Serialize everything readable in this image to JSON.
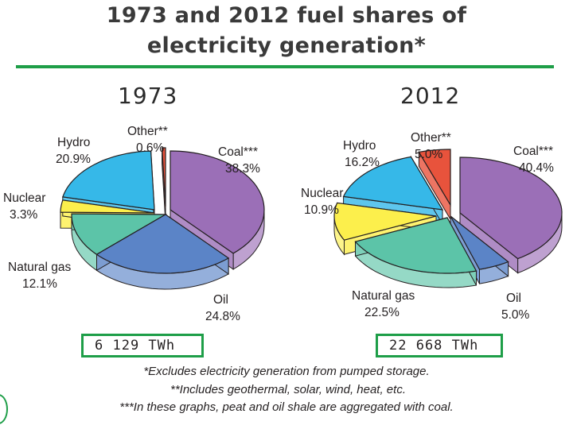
{
  "title": {
    "line1": "1973 and 2012 fuel shares of",
    "line2": "electricity generation*"
  },
  "colors": {
    "accent": "#1e9e48",
    "coal": "#9b6fb7",
    "oil": "#5b84c7",
    "natural_gas": "#5cc4a8",
    "nuclear": "#fcef4c",
    "hydro": "#36b8e8",
    "other": "#e8533c"
  },
  "chart_data": [
    {
      "type": "pie",
      "title": "1973",
      "categories": [
        "Coal***",
        "Oil",
        "Natural gas",
        "Nuclear",
        "Hydro",
        "Other**"
      ],
      "values": [
        38.3,
        24.8,
        12.1,
        3.3,
        20.9,
        0.6
      ],
      "value_labels": [
        "38.3%",
        "24.8%",
        "12.1%",
        "3.3%",
        "20.9%",
        "0.6%"
      ],
      "total": "6 129 TWh"
    },
    {
      "type": "pie",
      "title": "2012",
      "categories": [
        "Coal***",
        "Oil",
        "Natural gas",
        "Nuclear",
        "Hydro",
        "Other**"
      ],
      "values": [
        40.4,
        5.0,
        22.5,
        10.9,
        16.2,
        5.0
      ],
      "value_labels": [
        "40.4%",
        "5.0%",
        "22.5%",
        "10.9%",
        "16.2%",
        "5.0%"
      ],
      "total": "22 668 TWh"
    }
  ],
  "footnotes": [
    "*Excludes electricity generation from pumped storage.",
    "**Includes geothermal, solar, wind, heat, etc.",
    "***In these graphs, peat and oil shale are aggregated with coal."
  ]
}
